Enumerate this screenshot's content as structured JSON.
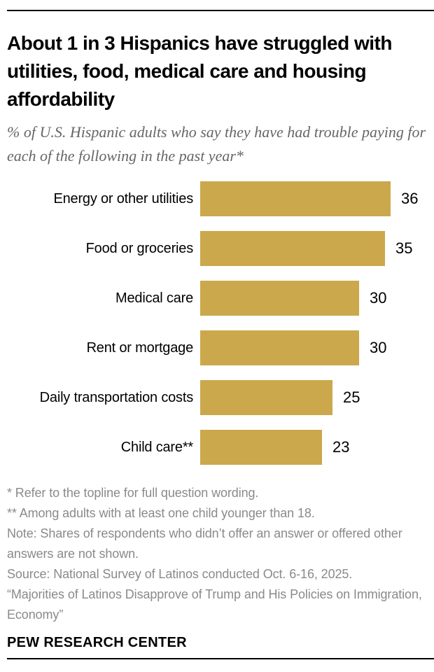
{
  "header": {
    "title": "About 1 in 3 Hispanics have struggled with utilities, food, medical care and housing affordability",
    "subtitle": "% of U.S. Hispanic adults who say they have had trouble paying for each of the following in the past year*"
  },
  "chart_data": {
    "type": "bar",
    "orientation": "horizontal",
    "categories": [
      "Energy or other utilities",
      "Food or groceries",
      "Medical care",
      "Rent or mortgage",
      "Daily transportation costs",
      "Child care**"
    ],
    "values": [
      36,
      35,
      30,
      30,
      25,
      23
    ],
    "xlim": [
      0,
      36
    ],
    "grid": false,
    "legend": false,
    "value_label_position": "outside-end",
    "bar_color": "#CBA84B",
    "value_label_color": "#000000"
  },
  "footnotes": [
    "* Refer to the topline for full question wording.",
    "** Among adults with at least one child younger than 18.",
    "Note: Shares of respondents who didn’t offer an answer or offered other answers are not shown.",
    "Source: National Survey of Latinos conducted Oct. 6-16, 2025.",
    "“Majorities of Latinos Disapprove of Trump and His Policies on Immigration, Economy”"
  ],
  "footer": {
    "brand": "PEW RESEARCH CENTER"
  },
  "colors": {
    "bar_gold": "#CBA84B",
    "subtitle_gray": "#666666",
    "footnote_gray": "#8A8A8A",
    "rule_black": "#000000"
  }
}
